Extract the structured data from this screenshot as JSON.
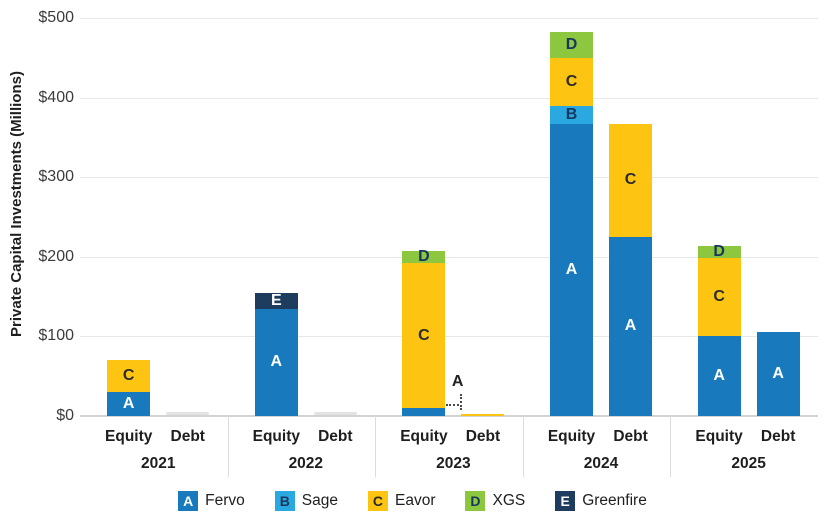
{
  "chart_data": {
    "type": "bar",
    "stacked": true,
    "title": "",
    "xlabel": "",
    "ylabel": "Private Capital Investments (Millions)",
    "ylim": [
      0,
      500
    ],
    "ytick_values": [
      0,
      100,
      200,
      300,
      400,
      500
    ],
    "yticks": [
      "$0",
      "$100",
      "$200",
      "$300",
      "$400",
      "$500"
    ],
    "grid": "horizontal",
    "legend_position": "bottom",
    "sub_categories": {
      "equity": "Equity",
      "debt": "Debt"
    },
    "companies": [
      {
        "key": "A",
        "name": "Fervo",
        "color": "#1879bd",
        "letter_color": "#ffffff"
      },
      {
        "key": "B",
        "name": "Sage",
        "color": "#29a9e0",
        "letter_color": "#17375e"
      },
      {
        "key": "C",
        "name": "Eavor",
        "color": "#fdc411",
        "letter_color": "#2b2b2b"
      },
      {
        "key": "D",
        "name": "XGS",
        "color": "#8dc63f",
        "letter_color": "#17375e"
      },
      {
        "key": "E",
        "name": "Greenfire",
        "color": "#1e3d5e",
        "letter_color": "#ffffff"
      }
    ],
    "groups": [
      {
        "year": "2021",
        "equity": [
          {
            "key": "A",
            "value": 30
          },
          {
            "key": "C",
            "value": 40
          }
        ],
        "debt": []
      },
      {
        "year": "2022",
        "equity": [
          {
            "key": "A",
            "value": 135
          },
          {
            "key": "E",
            "value": 20
          }
        ],
        "debt": []
      },
      {
        "year": "2023",
        "equity": [
          {
            "key": "A",
            "value": 10,
            "callout": true
          },
          {
            "key": "C",
            "value": 182
          },
          {
            "key": "D",
            "value": 15
          }
        ],
        "debt": [
          {
            "key": "C",
            "value": 3
          }
        ]
      },
      {
        "year": "2024",
        "equity": [
          {
            "key": "A",
            "value": 367
          },
          {
            "key": "B",
            "value": 22
          },
          {
            "key": "C",
            "value": 61
          },
          {
            "key": "D",
            "value": 32
          }
        ],
        "debt": [
          {
            "key": "A",
            "value": 225
          },
          {
            "key": "C",
            "value": 142
          }
        ]
      },
      {
        "year": "2025",
        "equity": [
          {
            "key": "A",
            "value": 101
          },
          {
            "key": "C",
            "value": 98
          },
          {
            "key": "D",
            "value": 15
          }
        ],
        "debt": [
          {
            "key": "A",
            "value": 106
          }
        ]
      }
    ],
    "colors": {
      "gridline": "#e7e7e7",
      "baseline": "#d2d2d2",
      "separator": "#dcdcdc",
      "zero_placeholder": "#e3e3e3",
      "text": "#1e1e1e"
    }
  }
}
